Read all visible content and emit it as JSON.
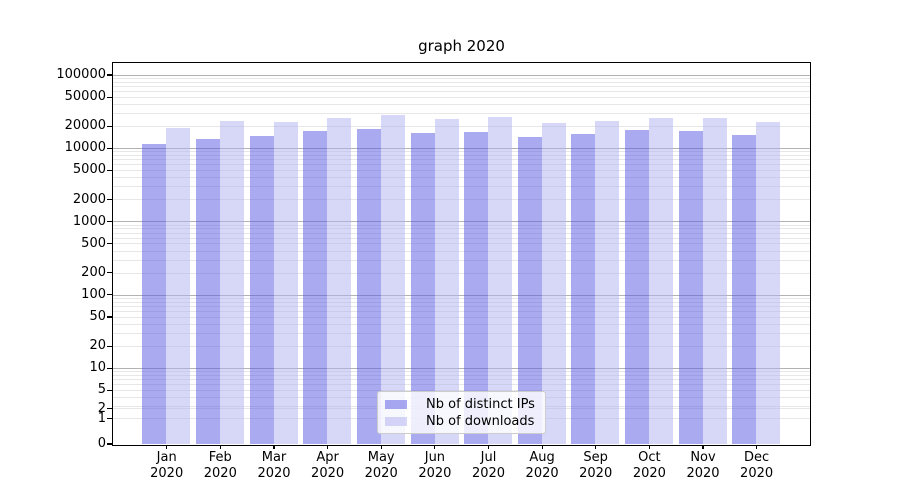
{
  "title": "graph 2020",
  "chart_data": {
    "type": "bar",
    "title": "graph 2020",
    "x_months": [
      "Jan",
      "Feb",
      "Mar",
      "Apr",
      "May",
      "Jun",
      "Jul",
      "Aug",
      "Sep",
      "Oct",
      "Nov",
      "Dec"
    ],
    "x_year": "2020",
    "series": [
      {
        "name": "Nb of distinct IPs",
        "color": "rgba(85,85,225,0.5)",
        "values": [
          11300,
          13100,
          14700,
          17000,
          18200,
          15800,
          16400,
          14300,
          15500,
          17400,
          17100,
          15200
        ]
      },
      {
        "name": "Nb of downloads",
        "color": "rgba(175,175,240,0.5)",
        "values": [
          18500,
          23500,
          22800,
          26000,
          28300,
          25100,
          26800,
          21900,
          23600,
          25800,
          25900,
          22600
        ]
      }
    ],
    "yscale": "symlog",
    "yticks": [
      0,
      1,
      2,
      5,
      10,
      20,
      50,
      100,
      200,
      500,
      1000,
      2000,
      5000,
      10000,
      20000,
      50000,
      100000
    ],
    "ylim": [
      0,
      150000
    ],
    "grid": "both",
    "legend_position": "lower center"
  },
  "colors": {
    "grid_major": "#b3b3b3",
    "grid_minor": "#e7e7e7",
    "axis": "#000000",
    "legend_border": "#cccccc"
  }
}
